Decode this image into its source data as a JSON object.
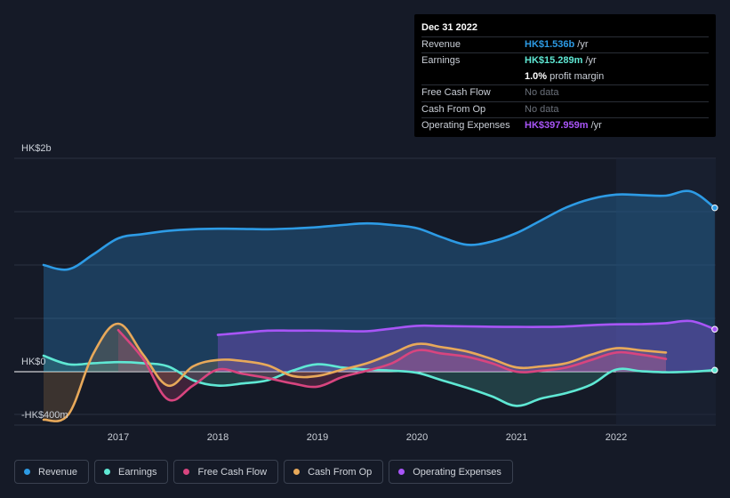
{
  "tooltip": {
    "date": "Dec 31 2022",
    "rows": [
      {
        "label": "Revenue",
        "value": "HK$1.536b",
        "unit": "/yr",
        "color": "#2d9be5"
      },
      {
        "label": "Earnings",
        "value": "HK$15.289m",
        "unit": "/yr",
        "color": "#5fe8d4"
      },
      {
        "label": "",
        "value": "1.0%",
        "unit": "profit margin",
        "color": "#ffffff"
      },
      {
        "label": "Free Cash Flow",
        "value": "No data",
        "unit": "",
        "color": "#6b717b"
      },
      {
        "label": "Cash From Op",
        "value": "No data",
        "unit": "",
        "color": "#6b717b"
      },
      {
        "label": "Operating Expenses",
        "value": "HK$397.959m",
        "unit": "/yr",
        "color": "#a855f7"
      }
    ]
  },
  "legend": [
    {
      "label": "Revenue",
      "color": "#2d9be5"
    },
    {
      "label": "Earnings",
      "color": "#5fe8d4"
    },
    {
      "label": "Free Cash Flow",
      "color": "#d8457f"
    },
    {
      "label": "Cash From Op",
      "color": "#e8a95a"
    },
    {
      "label": "Operating Expenses",
      "color": "#a855f7"
    }
  ],
  "chart_data": {
    "type": "line",
    "title": "",
    "xlabel": "",
    "ylabel": "",
    "y_tick_labels": [
      "HK$2b",
      "HK$0",
      "-HK$400m"
    ],
    "y_ticks": [
      2000,
      0,
      -400
    ],
    "ylim": [
      -450,
      2050
    ],
    "xlim": [
      2016.15,
      2023.0
    ],
    "x_ticks": [
      2017,
      2018,
      2019,
      2020,
      2021,
      2022
    ],
    "x_tick_labels": [
      "2017",
      "2018",
      "2019",
      "2020",
      "2021",
      "2022"
    ],
    "forecast_start": 2022.0,
    "series": [
      {
        "name": "Revenue",
        "color": "#2d9be5",
        "fill": true,
        "x": [
          2016.25,
          2016.5,
          2016.75,
          2017.0,
          2017.25,
          2017.5,
          2017.75,
          2018.0,
          2018.25,
          2018.5,
          2018.75,
          2019.0,
          2019.25,
          2019.5,
          2019.75,
          2020.0,
          2020.25,
          2020.5,
          2020.75,
          2021.0,
          2021.25,
          2021.5,
          2021.75,
          2022.0,
          2022.25,
          2022.5,
          2022.75,
          2022.99
        ],
        "values": [
          1000,
          960,
          1100,
          1250,
          1290,
          1320,
          1335,
          1340,
          1338,
          1335,
          1342,
          1355,
          1375,
          1390,
          1375,
          1345,
          1260,
          1190,
          1220,
          1300,
          1420,
          1540,
          1620,
          1660,
          1655,
          1650,
          1690,
          1536
        ]
      },
      {
        "name": "Earnings",
        "color": "#5fe8d4",
        "fill": true,
        "x": [
          2016.25,
          2016.5,
          2016.75,
          2017.0,
          2017.25,
          2017.5,
          2017.75,
          2018.0,
          2018.25,
          2018.5,
          2018.75,
          2019.0,
          2019.25,
          2019.5,
          2019.75,
          2020.0,
          2020.25,
          2020.5,
          2020.75,
          2021.0,
          2021.25,
          2021.5,
          2021.75,
          2022.0,
          2022.25,
          2022.5,
          2022.75,
          2022.99
        ],
        "values": [
          150,
          70,
          80,
          90,
          80,
          50,
          -80,
          -130,
          -110,
          -80,
          10,
          70,
          40,
          20,
          10,
          -10,
          -80,
          -150,
          -230,
          -320,
          -250,
          -200,
          -120,
          20,
          5,
          -5,
          0,
          15
        ]
      },
      {
        "name": "Free Cash Flow",
        "color": "#d8457f",
        "fill": true,
        "x": [
          2017.0,
          2017.25,
          2017.5,
          2017.75,
          2018.0,
          2018.25,
          2018.5,
          2018.75,
          2019.0,
          2019.25,
          2019.5,
          2019.75,
          2020.0,
          2020.25,
          2020.5,
          2020.75,
          2021.0,
          2021.25,
          2021.5,
          2021.75,
          2022.0,
          2022.25,
          2022.5
        ],
        "values": [
          390,
          120,
          -260,
          -130,
          20,
          -20,
          -60,
          -110,
          -140,
          -50,
          10,
          80,
          200,
          170,
          140,
          80,
          0,
          10,
          40,
          110,
          180,
          160,
          120
        ]
      },
      {
        "name": "Cash From Op",
        "color": "#e8a95a",
        "fill": true,
        "x": [
          2016.25,
          2016.5,
          2016.75,
          2017.0,
          2017.25,
          2017.5,
          2017.75,
          2018.0,
          2018.25,
          2018.5,
          2018.75,
          2019.0,
          2019.25,
          2019.5,
          2019.75,
          2020.0,
          2020.25,
          2020.5,
          2020.75,
          2021.0,
          2021.25,
          2021.5,
          2021.75,
          2022.0,
          2022.25,
          2022.5
        ],
        "values": [
          -450,
          -400,
          170,
          450,
          160,
          -130,
          50,
          110,
          100,
          60,
          -40,
          -40,
          20,
          80,
          170,
          260,
          230,
          190,
          120,
          40,
          50,
          80,
          160,
          220,
          200,
          180
        ]
      },
      {
        "name": "Operating Expenses",
        "color": "#a855f7",
        "fill": true,
        "x": [
          2018.0,
          2018.25,
          2018.5,
          2018.75,
          2019.0,
          2019.25,
          2019.5,
          2019.75,
          2020.0,
          2020.25,
          2020.5,
          2020.75,
          2021.0,
          2021.25,
          2021.5,
          2021.75,
          2022.0,
          2022.25,
          2022.5,
          2022.75,
          2022.99
        ],
        "values": [
          345,
          365,
          385,
          385,
          385,
          382,
          380,
          405,
          430,
          428,
          425,
          422,
          420,
          420,
          424,
          436,
          444,
          446,
          455,
          475,
          398
        ]
      }
    ]
  }
}
